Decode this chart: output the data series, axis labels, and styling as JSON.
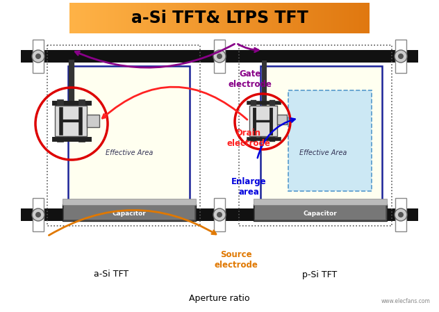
{
  "title": "a-Si TFT& LTPS TFT",
  "title_bg_left": "#F5A623",
  "title_bg_right": "#F08010",
  "title_text_color": "#111111",
  "bg_color": "#ffffff",
  "fig_bg": "#ffffff",
  "label_gate": "Gate\nelectrode",
  "label_drain": "Drain\nelectrode",
  "label_source": "Source\nelectrode",
  "label_enlarge": "Enlarge\narea",
  "label_effective_area": "Effective Area",
  "label_capacitor": "Capacitor",
  "label_aSi": "a-Si TFT",
  "label_pSi": "p-Si TFT",
  "label_aperture": "Aperture ratio",
  "gate_color": "#880088",
  "drain_color": "#FF2222",
  "source_color": "#E07800",
  "enlarge_color": "#0000DD",
  "pixel_fill_yellow": "#FFFFF0",
  "pixel_fill_blue": "#CCE8F4",
  "pixel_border": "#1a2299",
  "capacitor_fill_dark": "#444444",
  "capacitor_fill_light": "#888888",
  "tft_circle_color": "#DD0000",
  "bus_bar_color": "#111111",
  "connector_gray": "#aaaaaa",
  "watermark": "www.elecfans.com"
}
